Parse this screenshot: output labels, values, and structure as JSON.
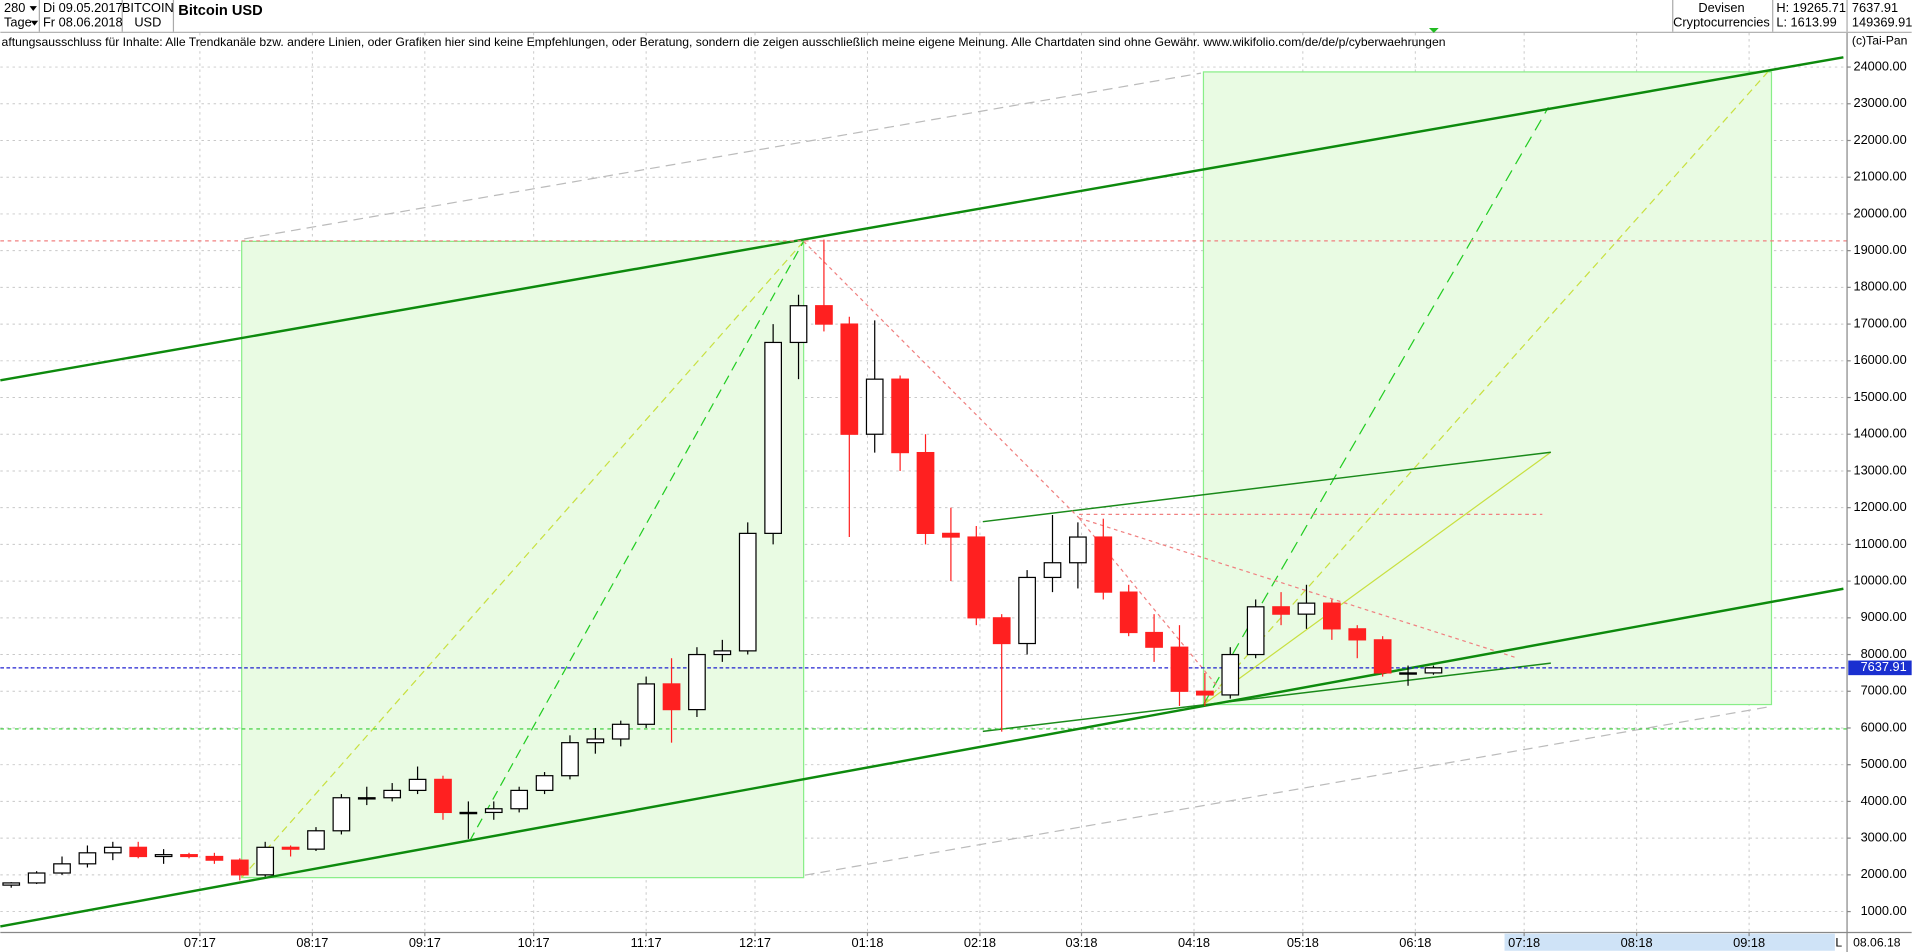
{
  "header": {
    "period": "280",
    "unit": "Tage",
    "start": "Di 09.05.2017",
    "end": "Fr 08.06.2018",
    "symbol": "BITCOIN",
    "currency": "USD",
    "market": "Devisen",
    "category": "Cryptocurrencies",
    "high": {
      "value": 19265.71,
      "label": "H: 19265.71"
    },
    "low": {
      "value": 1613.99,
      "label": "L: 1613.99"
    },
    "last": "7637.91",
    "volume": "149369.91",
    "disclaimer": "aftungsausschluss für Inhalte: Alle Trendkanäle bzw. andere Linien, oder Grafiken hier sind keine Empfehlungen, oder Beratung, sondern die zeigen ausschließlich meine eigene Meinung. Alle Chartdaten sind ohne Gewähr.  www.wikifolio.com/de/de/p/cyberwaehrungen",
    "copyright": "(c)Tai-Pan",
    "date_end": "08.06.18",
    "scale_mark": "L"
  },
  "chart_data": {
    "type": "candlestick",
    "title": "Bitcoin USD",
    "x": [
      -52,
      -45,
      -38,
      -31,
      -24,
      -17,
      -10,
      -3,
      4,
      11,
      18,
      25,
      32,
      39,
      46,
      53,
      60,
      67,
      74,
      81,
      88,
      95,
      102,
      109,
      116,
      123,
      130,
      137,
      144,
      151,
      158,
      165,
      172,
      179,
      186,
      193,
      200,
      207,
      214,
      221,
      228,
      235,
      242,
      249,
      256,
      263,
      270,
      277,
      284,
      291,
      298,
      305,
      312,
      319,
      326,
      333,
      340
    ],
    "open": [
      1720,
      1780,
      2050,
      2300,
      2600,
      2750,
      2500,
      2550,
      2500,
      2400,
      2000,
      2750,
      2700,
      3200,
      4100,
      4100,
      4300,
      4600,
      3700,
      3700,
      3800,
      4300,
      4700,
      5600,
      5700,
      6100,
      7200,
      6500,
      8000,
      8100,
      11300,
      16500,
      17500,
      17000,
      14000,
      15500,
      13500,
      11300,
      11200,
      9000,
      8300,
      10100,
      10500,
      11200,
      9700,
      8600,
      8200,
      7000,
      6900,
      8000,
      9300,
      9100,
      9400,
      8700,
      8400,
      7500,
      7500
    ],
    "high": [
      1800,
      2100,
      2500,
      2800,
      2900,
      2900,
      2700,
      2600,
      2600,
      2450,
      2900,
      2800,
      3300,
      4200,
      4400,
      4500,
      4950,
      4700,
      4000,
      4000,
      4400,
      4800,
      5800,
      6000,
      6200,
      7400,
      7900,
      8200,
      8400,
      11600,
      17000,
      17800,
      19300,
      17200,
      17100,
      15600,
      14000,
      12000,
      11500,
      9100,
      10300,
      11800,
      11600,
      11700,
      9900,
      9100,
      8800,
      7500,
      8200,
      9500,
      9700,
      9900,
      9500,
      8800,
      8500,
      7700,
      7700
    ],
    "low": [
      1650,
      1750,
      2000,
      2200,
      2400,
      2450,
      2300,
      2450,
      2300,
      1850,
      1950,
      2500,
      2650,
      3100,
      3900,
      4000,
      4200,
      3500,
      2980,
      3500,
      3700,
      4200,
      4600,
      5300,
      5500,
      6000,
      5600,
      6300,
      7800,
      8000,
      11000,
      15500,
      16800,
      11200,
      13500,
      13000,
      11000,
      10000,
      8800,
      5900,
      8000,
      9700,
      9800,
      9500,
      8500,
      7800,
      6600,
      6600,
      6800,
      7900,
      8800,
      8700,
      8400,
      7900,
      7400,
      7150,
      7450
    ],
    "close": [
      1780,
      2050,
      2300,
      2600,
      2750,
      2500,
      2550,
      2500,
      2400,
      2000,
      2750,
      2700,
      3200,
      4100,
      4100,
      4300,
      4600,
      3700,
      3700,
      3800,
      4300,
      4700,
      5600,
      5700,
      6100,
      7200,
      6500,
      8000,
      8100,
      11300,
      16500,
      17500,
      17000,
      14000,
      15500,
      13500,
      11300,
      11200,
      9000,
      8300,
      10100,
      10500,
      11200,
      9700,
      8600,
      8200,
      7000,
      6900,
      8000,
      9300,
      9100,
      9400,
      8700,
      8400,
      7500,
      7500,
      7638
    ],
    "up_color": "#ffffff",
    "down_color": "#ff2020",
    "wick_color": "#000000",
    "last": 7637.91,
    "xlim": [
      -55,
      454
    ],
    "xticks": [
      {
        "value": 0,
        "label": "07:17"
      },
      {
        "value": 31,
        "label": "08:17"
      },
      {
        "value": 62,
        "label": "09:17"
      },
      {
        "value": 92,
        "label": "10:17"
      },
      {
        "value": 123,
        "label": "11:17"
      },
      {
        "value": 153,
        "label": "12:17"
      },
      {
        "value": 184,
        "label": "01:18"
      },
      {
        "value": 215,
        "label": "02:18"
      },
      {
        "value": 243,
        "label": "03:18"
      },
      {
        "value": 274,
        "label": "04:18"
      },
      {
        "value": 304,
        "label": "05:18"
      },
      {
        "value": 335,
        "label": "06:18"
      },
      {
        "value": 365,
        "label": "07:18"
      },
      {
        "value": 396,
        "label": "08:18"
      },
      {
        "value": 427,
        "label": "09:18"
      }
    ],
    "ylim": [
      430,
      24930
    ],
    "yticks": [
      {
        "value": 1000,
        "label": "1000.00"
      },
      {
        "value": 2000,
        "label": "2000.00"
      },
      {
        "value": 3000,
        "label": "3000.00"
      },
      {
        "value": 4000,
        "label": "4000.00"
      },
      {
        "value": 5000,
        "label": "5000.00"
      },
      {
        "value": 6000,
        "label": "6000.00"
      },
      {
        "value": 7000,
        "label": "7000.00"
      },
      {
        "value": 8000,
        "label": "8000.00"
      },
      {
        "value": 9000,
        "label": "9000.00"
      },
      {
        "value": 10000,
        "label": "10000.00"
      },
      {
        "value": 11000,
        "label": "11000.00"
      },
      {
        "value": 12000,
        "label": "12000.00"
      },
      {
        "value": 13000,
        "label": "13000.00"
      },
      {
        "value": 14000,
        "label": "14000.00"
      },
      {
        "value": 15000,
        "label": "15000.00"
      },
      {
        "value": 16000,
        "label": "16000.00"
      },
      {
        "value": 17000,
        "label": "17000.00"
      },
      {
        "value": 18000,
        "label": "18000.00"
      },
      {
        "value": 19000,
        "label": "19000.00"
      },
      {
        "value": 20000,
        "label": "20000.00"
      },
      {
        "value": 21000,
        "label": "21000.00"
      },
      {
        "value": 22000,
        "label": "22000.00"
      },
      {
        "value": 23000,
        "label": "23000.00"
      },
      {
        "value": 24000,
        "label": "24000.00"
      }
    ],
    "grid": true
  }
}
